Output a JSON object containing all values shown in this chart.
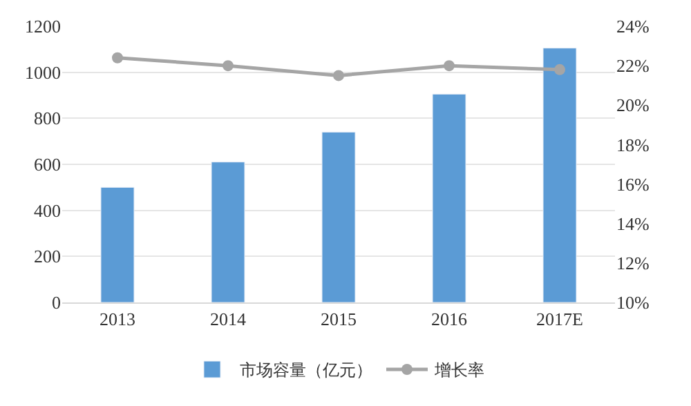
{
  "chart_data": {
    "type": "bar",
    "categories": [
      "2013",
      "2014",
      "2015",
      "2016",
      "2017E"
    ],
    "series": [
      {
        "name": "市场容量（亿元）",
        "color": "#5b9bd5",
        "values": [
          500,
          610,
          740,
          905,
          1105
        ]
      },
      {
        "name": "增长率",
        "type": "line",
        "axis": "y2",
        "color": "#a5a5a5",
        "marker": "circle",
        "values": [
          22.4,
          22.0,
          21.5,
          22.0,
          21.8
        ]
      }
    ],
    "ylim": [
      0,
      1200
    ],
    "yticks": [
      0,
      200,
      400,
      600,
      800,
      1000,
      1200
    ],
    "y2lim": [
      10,
      24
    ],
    "y2ticks": [
      {
        "value": 10,
        "label": "10%"
      },
      {
        "value": 12,
        "label": "12%"
      },
      {
        "value": 14,
        "label": "14%"
      },
      {
        "value": 16,
        "label": "16%"
      },
      {
        "value": 18,
        "label": "18%"
      },
      {
        "value": 20,
        "label": "20%"
      },
      {
        "value": 22,
        "label": "22%"
      },
      {
        "value": 24,
        "label": "24%"
      }
    ],
    "grid": "y",
    "legend": "bottom"
  }
}
